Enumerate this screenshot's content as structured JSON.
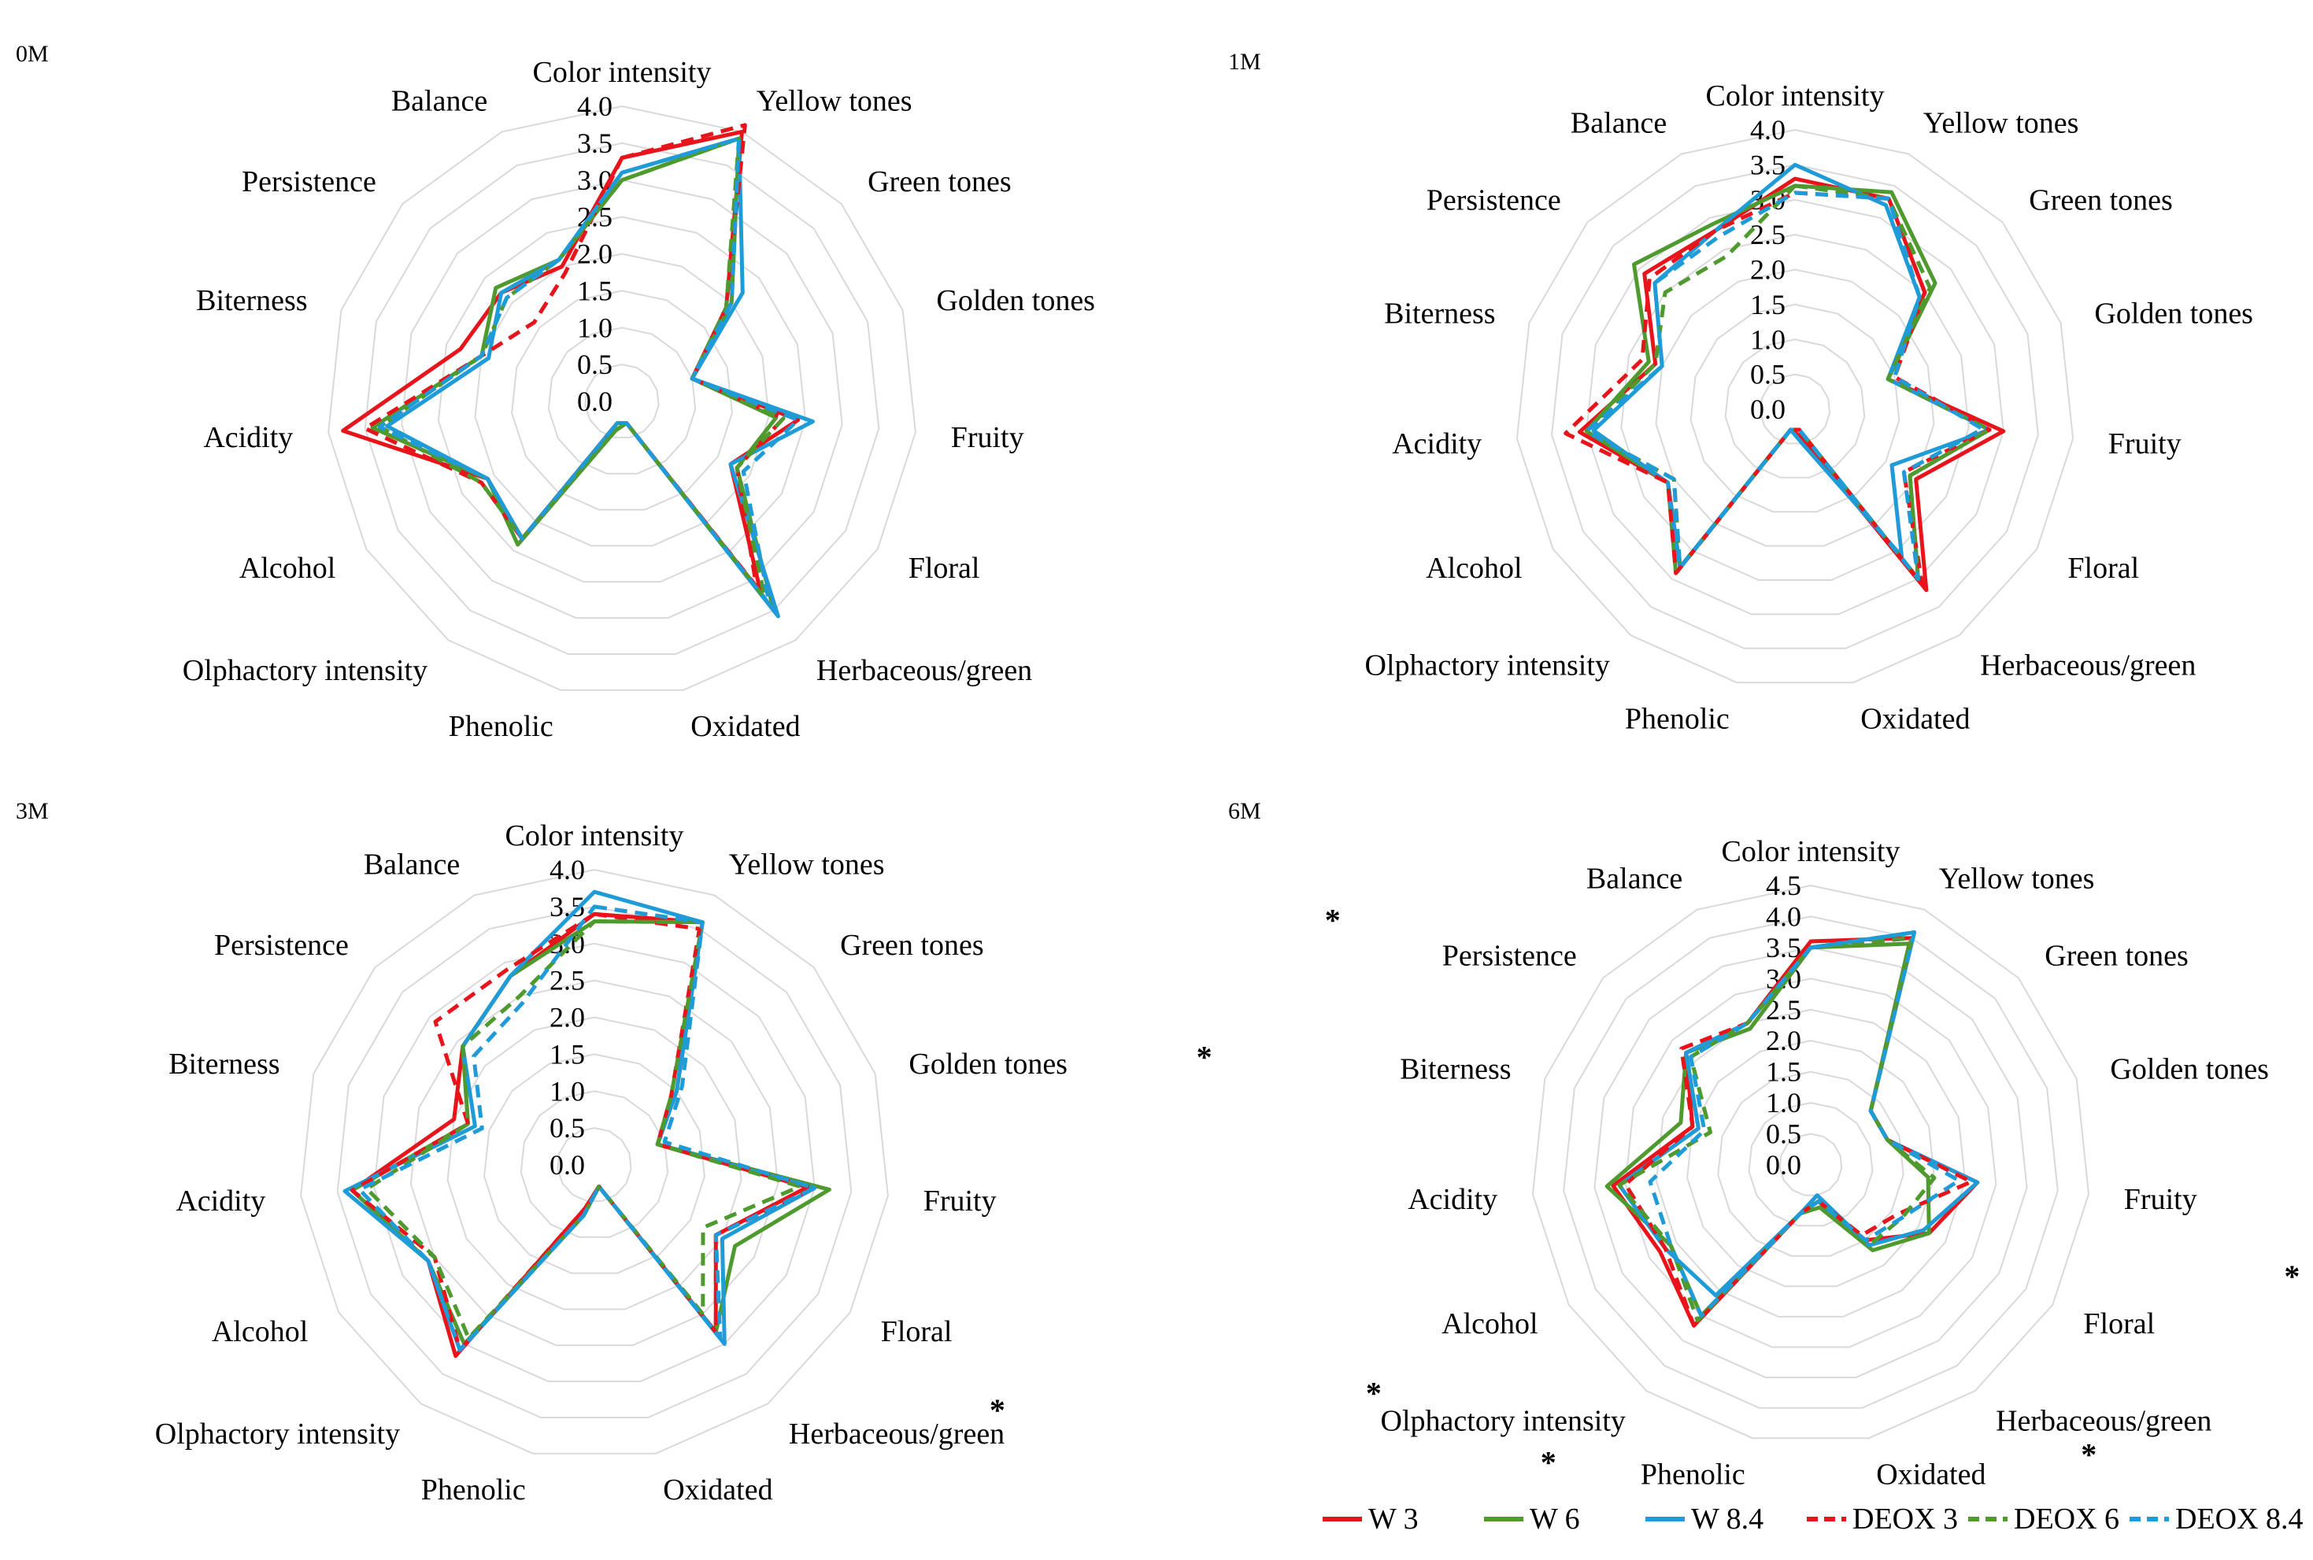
{
  "chart_data": {
    "type": "radar",
    "figure": "Sensory profiles of wines at 0, 1, 3 and 6 months",
    "categories": [
      "Color intensity",
      "Yellow tones",
      "Green tones",
      "Golden tones",
      "Fruity",
      "Floral",
      "Herbaceous/green",
      "Oxidated",
      "Phenolic",
      "Olphactory intensity",
      "Alcohol",
      "Acidity",
      "Biterness",
      "Persistence",
      "Balance"
    ],
    "series_styles": [
      {
        "name": "W 3",
        "color": "#e8141b",
        "dash": "solid"
      },
      {
        "name": "W 6",
        "color": "#4f9a2e",
        "dash": "solid"
      },
      {
        "name": "W 8.4",
        "color": "#1f9bd7",
        "dash": "solid"
      },
      {
        "name": "DEOX 3",
        "color": "#e8141b",
        "dash": "dashed"
      },
      {
        "name": "DEOX 6",
        "color": "#4f9a2e",
        "dash": "dashed"
      },
      {
        "name": "DEOX 8.4",
        "color": "#1f9bd7",
        "dash": "dashed"
      }
    ],
    "legend": [
      "W 3",
      "W 6",
      "W 8.4",
      "DEOX 3",
      "DEOX 6",
      "DEOX 8.4"
    ],
    "panels": [
      {
        "label": "0M",
        "ylim": [
          0,
          4.0
        ],
        "ticks": [
          "0.0",
          "0.5",
          "1.0",
          "1.5",
          "2.0",
          "2.5",
          "3.0",
          "3.5",
          "4.0"
        ],
        "significant": [],
        "series": [
          {
            "name": "W 3",
            "values": [
              3.3,
              4.0,
              1.9,
              1.0,
              2.4,
              1.7,
              3.2,
              0.3,
              0.3,
              2.3,
              2.1,
              3.8,
              2.3,
              2.2,
              2.0
            ]
          },
          {
            "name": "W 6",
            "values": [
              3.0,
              3.9,
              2.0,
              1.0,
              2.1,
              1.8,
              3.5,
              0.3,
              0.4,
              2.4,
              2.1,
              3.4,
              2.0,
              2.3,
              2.1
            ]
          },
          {
            "name": "W 8.4",
            "values": [
              3.1,
              3.9,
              2.2,
              1.0,
              2.6,
              1.7,
              3.6,
              0.3,
              0.3,
              2.3,
              2.1,
              3.2,
              1.9,
              2.2,
              2.1
            ]
          },
          {
            "name": "DEOX 3",
            "values": [
              3.3,
              4.1,
              1.9,
              1.0,
              2.2,
              1.8,
              3.1,
              0.3,
              0.3,
              2.3,
              2.2,
              3.5,
              2.0,
              1.6,
              1.9
            ]
          },
          {
            "name": "DEOX 6",
            "values": [
              3.0,
              3.9,
              1.9,
              1.0,
              2.2,
              1.8,
              3.3,
              0.3,
              0.4,
              2.3,
              2.2,
              3.3,
              2.0,
              2.1,
              2.1
            ]
          },
          {
            "name": "DEOX 8.4",
            "values": [
              3.1,
              3.9,
              2.0,
              1.0,
              2.4,
              1.9,
              3.4,
              0.3,
              0.3,
              2.3,
              2.1,
              3.3,
              2.0,
              2.1,
              2.1
            ]
          }
        ]
      },
      {
        "label": "1M",
        "ylim": [
          0,
          4.0
        ],
        "ticks": [
          "0.0",
          "0.5",
          "1.0",
          "1.5",
          "2.0",
          "2.5",
          "3.0",
          "3.5",
          "4.0"
        ],
        "significant": [],
        "series": [
          {
            "name": "W 3",
            "values": [
              3.3,
              3.3,
              2.5,
              1.4,
              3.0,
              2.0,
              3.2,
              0.4,
              0.3,
              2.8,
              2.1,
              3.1,
              2.1,
              2.9,
              2.8
            ]
          },
          {
            "name": "W 6",
            "values": [
              3.2,
              3.4,
              2.7,
              1.4,
              2.8,
              1.9,
              3.0,
              0.3,
              0.3,
              2.9,
              2.1,
              3.0,
              2.2,
              3.1,
              2.9
            ]
          },
          {
            "name": "W 8.4",
            "values": [
              3.5,
              3.2,
              2.4,
              1.4,
              2.8,
              1.6,
              2.6,
              0.5,
              0.3,
              2.8,
              2.1,
              2.9,
              2.0,
              2.7,
              2.8
            ]
          },
          {
            "name": "DEOX 3",
            "values": [
              3.1,
              3.3,
              2.5,
              1.5,
              2.8,
              1.8,
              3.1,
              0.3,
              0.3,
              2.9,
              2.1,
              3.3,
              2.3,
              2.8,
              2.8
            ]
          },
          {
            "name": "DEOX 6",
            "values": [
              3.2,
              3.3,
              2.6,
              1.4,
              2.8,
              1.9,
              3.0,
              0.3,
              0.3,
              2.8,
              2.0,
              3.0,
              2.1,
              2.5,
              2.4
            ]
          },
          {
            "name": "DEOX 8.4",
            "values": [
              3.1,
              3.3,
              2.4,
              1.5,
              2.7,
              1.8,
              3.0,
              0.3,
              0.3,
              2.8,
              2.0,
              3.0,
              2.0,
              2.7,
              2.7
            ]
          }
        ]
      },
      {
        "label": "3M",
        "ylim": [
          0,
          4.0
        ],
        "ticks": [
          "0.0",
          "0.5",
          "1.0",
          "1.5",
          "2.0",
          "2.5",
          "3.0",
          "3.5",
          "4.0"
        ],
        "significant": [
          "Biterness",
          "Herbaceous/green"
        ],
        "series": [
          {
            "name": "W 3",
            "values": [
              3.4,
              3.6,
              1.5,
              0.9,
              2.9,
              1.9,
              2.8,
              0.3,
              0.6,
              3.2,
              2.6,
              3.3,
              2.0,
              2.4,
              2.8
            ]
          },
          {
            "name": "W 6",
            "values": [
              3.3,
              3.6,
              1.5,
              0.9,
              3.2,
              2.2,
              2.8,
              0.3,
              0.7,
              3.0,
              2.6,
              3.3,
              1.8,
              2.4,
              2.8
            ]
          },
          {
            "name": "W 8.4",
            "values": [
              3.7,
              3.6,
              1.5,
              0.9,
              3.0,
              2.0,
              3.0,
              0.3,
              0.7,
              3.1,
              2.6,
              3.4,
              1.7,
              2.4,
              2.8
            ]
          },
          {
            "name": "DEOX 3",
            "values": [
              3.4,
              3.5,
              1.4,
              0.9,
              3.0,
              1.9,
              2.8,
              0.3,
              0.6,
              3.1,
              2.5,
              3.3,
              1.8,
              2.9,
              2.9
            ]
          },
          {
            "name": "DEOX 6",
            "values": [
              3.3,
              3.6,
              1.4,
              0.9,
              2.8,
              1.7,
              2.5,
              0.3,
              0.7,
              2.9,
              2.5,
              3.1,
              1.8,
              2.4,
              2.5
            ]
          },
          {
            "name": "DEOX 8.4",
            "values": [
              3.5,
              3.6,
              1.6,
              1.0,
              3.0,
              1.9,
              2.9,
              0.3,
              0.7,
              3.1,
              2.6,
              3.2,
              1.6,
              2.2,
              2.4
            ]
          }
        ]
      },
      {
        "label": "6M",
        "ylim": [
          0,
          4.5
        ],
        "ticks": [
          "0.0",
          "0.5",
          "1.0",
          "1.5",
          "2.0",
          "2.5",
          "3.0",
          "3.5",
          "4.0",
          "4.5"
        ],
        "significant": [
          "Persistence",
          "Biterness",
          "Fruity",
          "Floral",
          "Olphactory intensity",
          "Phenolic",
          "Oxidated"
        ],
        "series": [
          {
            "name": "W 3",
            "values": [
              3.6,
              4.0,
              1.3,
              1.3,
              2.7,
              2.2,
              1.5,
              0.6,
              0.8,
              3.2,
              2.8,
              3.2,
              2.0,
              2.7,
              2.5
            ]
          },
          {
            "name": "W 6",
            "values": [
              3.5,
              3.9,
              1.3,
              1.3,
              1.9,
              2.2,
              1.7,
              0.7,
              0.8,
              3.0,
              2.6,
              3.3,
              2.2,
              2.7,
              2.4
            ]
          },
          {
            "name": "W 8.4",
            "values": [
              3.5,
              4.1,
              1.3,
              1.3,
              2.7,
              2.1,
              1.6,
              0.5,
              0.8,
              2.6,
              2.7,
              3.1,
              1.9,
              2.7,
              2.5
            ]
          },
          {
            "name": "DEOX 3",
            "values": [
              3.5,
              4.0,
              1.3,
              1.3,
              2.6,
              1.6,
              1.4,
              0.6,
              0.8,
              3.2,
              2.7,
              3.0,
              2.0,
              2.8,
              2.5
            ]
          },
          {
            "name": "DEOX 6",
            "values": [
              3.5,
              4.0,
              1.3,
              1.3,
              2.0,
              1.7,
              1.6,
              0.6,
              0.8,
              3.1,
              2.6,
              3.1,
              1.7,
              2.6,
              2.5
            ]
          },
          {
            "name": "DEOX 8.4",
            "values": [
              3.5,
              4.1,
              1.3,
              1.3,
              2.4,
              1.7,
              1.5,
              0.6,
              0.8,
              3.0,
              2.6,
              2.6,
              1.8,
              2.6,
              2.5
            ]
          }
        ]
      }
    ]
  }
}
